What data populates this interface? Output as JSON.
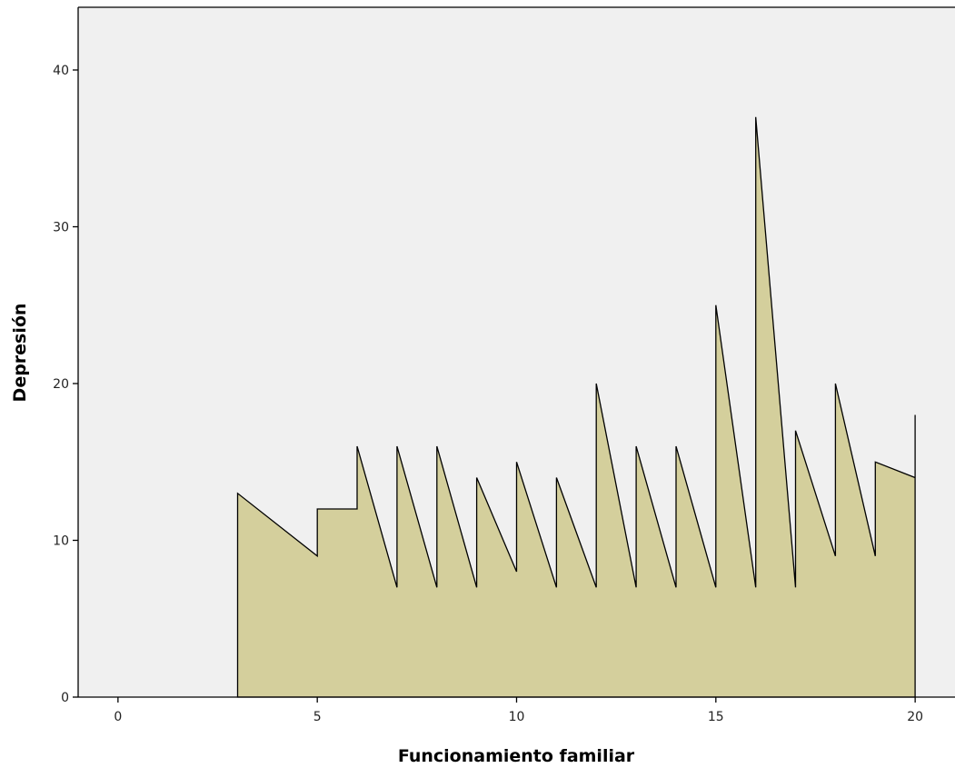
{
  "chart_data": {
    "type": "area",
    "xlabel": "Funcionamiento familiar",
    "ylabel": "Depresión",
    "xlim": [
      -1,
      21
    ],
    "ylim": [
      0,
      44
    ],
    "xticks": [
      0,
      5,
      10,
      15,
      20
    ],
    "yticks": [
      0,
      10,
      20,
      30,
      40
    ],
    "grid": false,
    "legend": "none",
    "colors": {
      "fill": "#d4cf9c",
      "stroke": "#000000",
      "plot_background": "#f0f0f0"
    },
    "points": [
      [
        3,
        0
      ],
      [
        3,
        13
      ],
      [
        5,
        9
      ],
      [
        5,
        12
      ],
      [
        6,
        12
      ],
      [
        6,
        16
      ],
      [
        7,
        7
      ],
      [
        7,
        16
      ],
      [
        8,
        7
      ],
      [
        8,
        16
      ],
      [
        9,
        7
      ],
      [
        9,
        14
      ],
      [
        10,
        8
      ],
      [
        10,
        15
      ],
      [
        11,
        7
      ],
      [
        11,
        14
      ],
      [
        12,
        7
      ],
      [
        12,
        20
      ],
      [
        13,
        7
      ],
      [
        13,
        16
      ],
      [
        14,
        7
      ],
      [
        14,
        16
      ],
      [
        15,
        7
      ],
      [
        15,
        25
      ],
      [
        16,
        7
      ],
      [
        16,
        37
      ],
      [
        17,
        7
      ],
      [
        17,
        17
      ],
      [
        18,
        9
      ],
      [
        18,
        20
      ],
      [
        19,
        9
      ],
      [
        19,
        15
      ],
      [
        20,
        14
      ],
      [
        20,
        18
      ],
      [
        20,
        0
      ]
    ]
  }
}
